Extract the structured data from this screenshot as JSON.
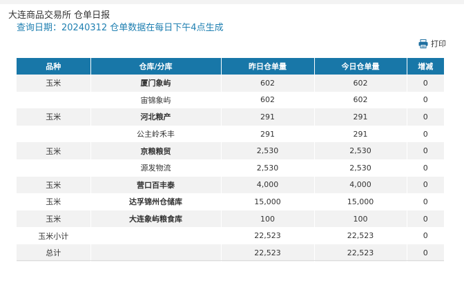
{
  "header": {
    "crumb": "大连商品交易所 仓单日报",
    "query_line": "查询日期：20240312 仓单数据在每日下午4点生成"
  },
  "toolbar": {
    "print_label": "打印",
    "print_icon": "printer-icon"
  },
  "table": {
    "columns": [
      "品种",
      "仓库/分库",
      "昨日仓单量",
      "今日仓单量",
      "增减"
    ],
    "rows": [
      {
        "variety": "玉米",
        "warehouse": "厦门象屿",
        "warehouse_bold": true,
        "yesterday": "602",
        "today": "602",
        "change": "0"
      },
      {
        "variety": "",
        "warehouse": "宙锦象屿",
        "warehouse_bold": false,
        "yesterday": "602",
        "today": "602",
        "change": "0"
      },
      {
        "variety": "玉米",
        "warehouse": "河北粮产",
        "warehouse_bold": true,
        "yesterday": "291",
        "today": "291",
        "change": "0"
      },
      {
        "variety": "",
        "warehouse": "公主岭禾丰",
        "warehouse_bold": false,
        "yesterday": "291",
        "today": "291",
        "change": "0"
      },
      {
        "variety": "玉米",
        "warehouse": "京粮粮贸",
        "warehouse_bold": true,
        "yesterday": "2,530",
        "today": "2,530",
        "change": "0"
      },
      {
        "variety": "",
        "warehouse": "源发物流",
        "warehouse_bold": false,
        "yesterday": "2,530",
        "today": "2,530",
        "change": "0"
      },
      {
        "variety": "玉米",
        "warehouse": "营口百丰泰",
        "warehouse_bold": true,
        "yesterday": "4,000",
        "today": "4,000",
        "change": "0"
      },
      {
        "variety": "玉米",
        "warehouse": "达孚锦州仓储库",
        "warehouse_bold": true,
        "yesterday": "15,000",
        "today": "15,000",
        "change": "0"
      },
      {
        "variety": "玉米",
        "warehouse": "大连象屿粮食库",
        "warehouse_bold": true,
        "yesterday": "100",
        "today": "100",
        "change": "0"
      },
      {
        "variety": "玉米小计",
        "warehouse": "",
        "warehouse_bold": false,
        "yesterday": "22,523",
        "today": "22,523",
        "change": "0"
      },
      {
        "variety": "总计",
        "warehouse": "",
        "warehouse_bold": false,
        "yesterday": "22,523",
        "today": "22,523",
        "change": "0"
      }
    ]
  },
  "colors": {
    "header_bg": "#1877a8",
    "accent_text": "#1e7fb1",
    "row_alt": "#f2f2f2"
  }
}
